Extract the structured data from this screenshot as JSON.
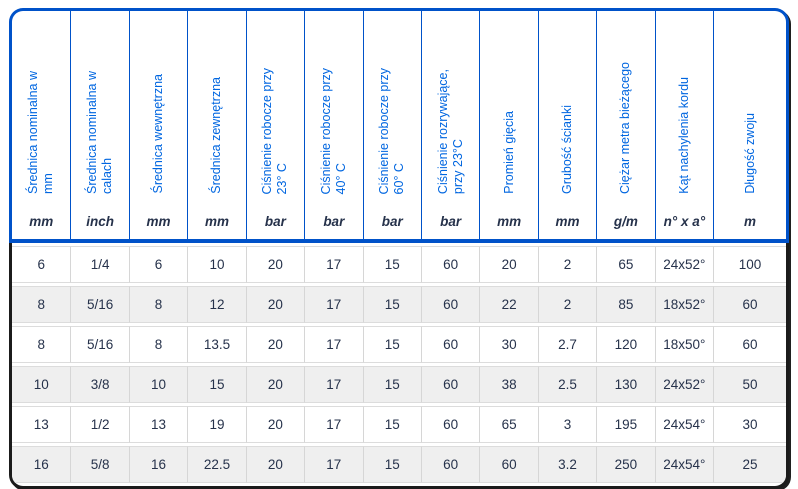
{
  "table": {
    "name": "hose-specification-table",
    "columns": [
      {
        "label": "Średnica nominalna w\nmm",
        "unit": "mm"
      },
      {
        "label": "Średnica nominalna w\ncalach",
        "unit": "inch"
      },
      {
        "label": "Średnica wewnętrzna",
        "unit": "mm"
      },
      {
        "label": "Średnica zewnętrzna",
        "unit": "mm"
      },
      {
        "label": "Ciśnienie robocze przy\n23° C",
        "unit": "bar"
      },
      {
        "label": "Ciśnienie robocze przy\n40° C",
        "unit": "bar"
      },
      {
        "label": "Ciśnienie robocze przy\n60° C",
        "unit": "bar"
      },
      {
        "label": "Ciśnienie rozrywające,\nprzy 23°C",
        "unit": "bar"
      },
      {
        "label": "Promień gięcia",
        "unit": "mm"
      },
      {
        "label": "Grubość ścianki",
        "unit": "mm"
      },
      {
        "label": "Ciężar metra bieżącego",
        "unit": "g/m"
      },
      {
        "label": "Kąt nachylenia kordu",
        "unit": "n° x a°"
      },
      {
        "label": "Długość zwoju",
        "unit": "m"
      }
    ],
    "rows": [
      [
        "6",
        "1/4",
        "6",
        "10",
        "20",
        "17",
        "15",
        "60",
        "20",
        "2",
        "65",
        "24x52°",
        "100"
      ],
      [
        "8",
        "5/16",
        "8",
        "12",
        "20",
        "17",
        "15",
        "60",
        "22",
        "2",
        "85",
        "18x52°",
        "60"
      ],
      [
        "8",
        "5/16",
        "8",
        "13.5",
        "20",
        "17",
        "15",
        "60",
        "30",
        "2.7",
        "120",
        "18x50°",
        "60"
      ],
      [
        "10",
        "3/8",
        "10",
        "15",
        "20",
        "17",
        "15",
        "60",
        "38",
        "2.5",
        "130",
        "24x52°",
        "50"
      ],
      [
        "13",
        "1/2",
        "13",
        "19",
        "20",
        "17",
        "15",
        "60",
        "65",
        "3",
        "195",
        "24x54°",
        "30"
      ],
      [
        "16",
        "5/8",
        "16",
        "22.5",
        "20",
        "17",
        "15",
        "60",
        "60",
        "3.2",
        "250",
        "24x54°",
        "25"
      ]
    ],
    "layout": {
      "last_column_width_pct": 9.4
    }
  },
  "colors": {
    "header_border_blue": "#0052c9",
    "header_text_blue": "#0066e0",
    "data_border_black": "#1b1b1b",
    "data_text": "#26324b",
    "stripe_gray": "#efefef",
    "separator_gray": "#d6d6d6"
  }
}
